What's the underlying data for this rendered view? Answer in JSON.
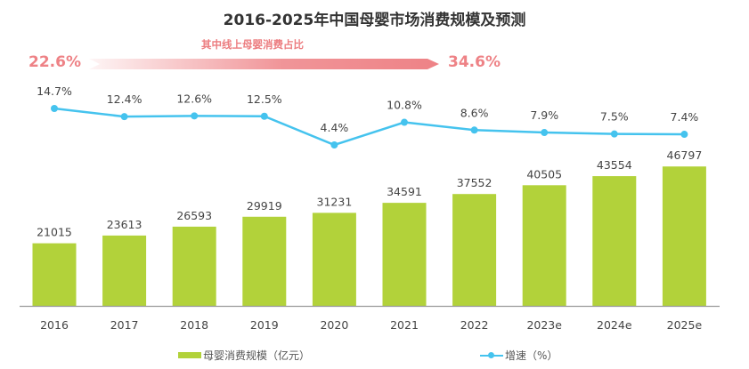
{
  "chart_data": {
    "type": "bar",
    "title": "2016-2025年中国母婴市场消费规模及预测",
    "categories": [
      "2016",
      "2017",
      "2018",
      "2019",
      "2020",
      "2021",
      "2022",
      "2023e",
      "2024e",
      "2025e"
    ],
    "series": [
      {
        "name": "母婴消费规模（亿元）",
        "type": "bar",
        "color": "#b2d23a",
        "values": [
          21015,
          23613,
          26593,
          29919,
          31231,
          34591,
          37552,
          40505,
          43554,
          46797
        ],
        "labels": [
          "21015",
          "23613",
          "26593",
          "29919",
          "31231",
          "34591",
          "37552",
          "40505",
          "43554",
          "46797"
        ]
      },
      {
        "name": "增速（%）",
        "type": "line",
        "color": "#45c3ee",
        "values": [
          14.7,
          12.4,
          12.6,
          12.5,
          4.4,
          10.8,
          8.6,
          7.9,
          7.5,
          7.4
        ],
        "labels": [
          "14.7%",
          "12.4%",
          "12.6%",
          "12.5%",
          "4.4%",
          "10.8%",
          "8.6%",
          "7.9%",
          "7.5%",
          "7.4%"
        ]
      }
    ],
    "ylim_bar": [
      0,
      60000
    ],
    "ylim_line": [
      0,
      20
    ],
    "grid": false,
    "legend_position": "bottom",
    "annotation": {
      "label": "其中线上母婴消费占比",
      "from": "22.6%",
      "to": "34.6%",
      "color": "#ee8286"
    }
  }
}
